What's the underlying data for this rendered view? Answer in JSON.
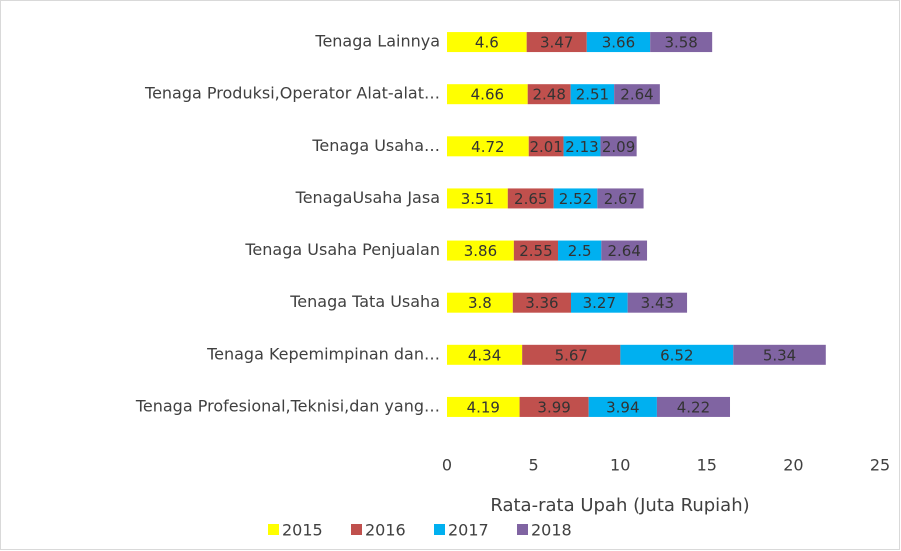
{
  "chart_data": {
    "type": "bar",
    "orientation": "horizontal",
    "stacked": true,
    "x_label": "Rata-rata Upah (Juta Rupiah)",
    "categories": [
      "Tenaga Lainnya",
      "Tenaga Produksi,Operator Alat-alat…",
      "Tenaga Usaha…",
      "TenagaUsaha Jasa",
      "Tenaga Usaha Penjualan",
      "Tenaga Tata Usaha",
      "Tenaga Kepemimpinan dan…",
      "Tenaga Profesional,Teknisi,dan yang…"
    ],
    "series": [
      {
        "name": "2015",
        "color": "#ffff00",
        "values": [
          4.6,
          4.66,
          4.72,
          3.51,
          3.86,
          3.8,
          4.34,
          4.19
        ]
      },
      {
        "name": "2016",
        "color": "#c0504d",
        "values": [
          3.47,
          2.48,
          2.01,
          2.65,
          2.55,
          3.36,
          5.67,
          3.99
        ]
      },
      {
        "name": "2017",
        "color": "#00b0f0",
        "values": [
          3.66,
          2.51,
          2.13,
          2.52,
          2.5,
          3.27,
          6.52,
          3.94
        ]
      },
      {
        "name": "2018",
        "color": "#8064a2",
        "values": [
          3.58,
          2.64,
          2.09,
          2.67,
          2.64,
          3.43,
          5.34,
          4.22
        ]
      }
    ],
    "xlim": [
      0,
      25
    ],
    "xticks": [
      0,
      5,
      10,
      15,
      20,
      25
    ],
    "grid": false,
    "legend": "bottom"
  }
}
